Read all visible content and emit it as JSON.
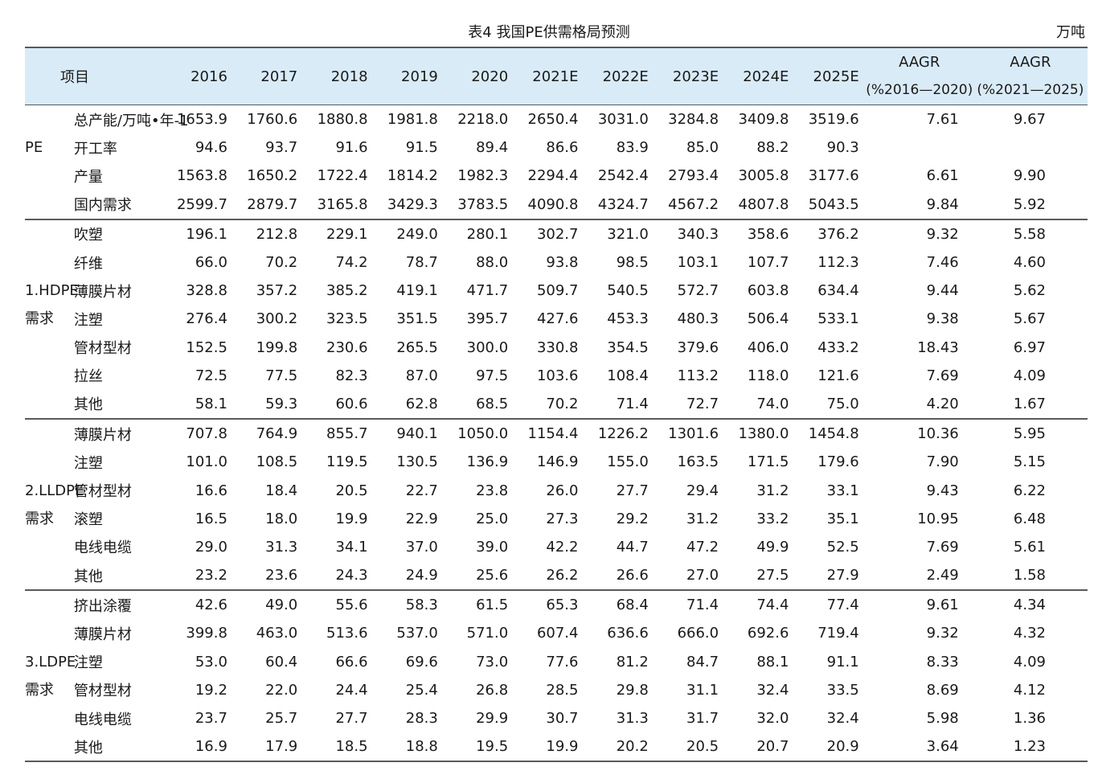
{
  "caption": "表4  我国PE供需格局预测",
  "unit": "万吨",
  "header": {
    "item": "项目",
    "years": [
      "2016",
      "2017",
      "2018",
      "2019",
      "2020",
      "2021E",
      "2022E",
      "2023E",
      "2024E",
      "2025E"
    ],
    "aagr1": {
      "title": "AAGR",
      "sub": "(%2016—2020)"
    },
    "aagr2": {
      "title": "AAGR",
      "sub": "(%2021—2025)"
    }
  },
  "sections": [
    {
      "group_lines": [
        "PE"
      ],
      "rows": [
        {
          "item": "总产能/万吨•年-1",
          "values": [
            "1653.9",
            "1760.6",
            "1880.8",
            "1981.8",
            "2218.0",
            "2650.4",
            "3031.0",
            "3284.8",
            "3409.8",
            "3519.6"
          ],
          "aagr1": "7.61",
          "aagr2": "9.67"
        },
        {
          "item": "开工率",
          "values": [
            "94.6",
            "93.7",
            "91.6",
            "91.5",
            "89.4",
            "86.6",
            "83.9",
            "85.0",
            "88.2",
            "90.3"
          ],
          "aagr1": "",
          "aagr2": ""
        },
        {
          "item": "产量",
          "values": [
            "1563.8",
            "1650.2",
            "1722.4",
            "1814.2",
            "1982.3",
            "2294.4",
            "2542.4",
            "2793.4",
            "3005.8",
            "3177.6"
          ],
          "aagr1": "6.61",
          "aagr2": "9.90"
        },
        {
          "item": "国内需求",
          "values": [
            "2599.7",
            "2879.7",
            "3165.8",
            "3429.3",
            "3783.5",
            "4090.8",
            "4324.7",
            "4567.2",
            "4807.8",
            "5043.5"
          ],
          "aagr1": "9.84",
          "aagr2": "5.92"
        }
      ]
    },
    {
      "group_lines": [
        "1.HDPE",
        "需求"
      ],
      "rows": [
        {
          "item": "吹塑",
          "values": [
            "196.1",
            "212.8",
            "229.1",
            "249.0",
            "280.1",
            "302.7",
            "321.0",
            "340.3",
            "358.6",
            "376.2"
          ],
          "aagr1": "9.32",
          "aagr2": "5.58"
        },
        {
          "item": "纤维",
          "values": [
            "66.0",
            "70.2",
            "74.2",
            "78.7",
            "88.0",
            "93.8",
            "98.5",
            "103.1",
            "107.7",
            "112.3"
          ],
          "aagr1": "7.46",
          "aagr2": "4.60"
        },
        {
          "item": "薄膜片材",
          "values": [
            "328.8",
            "357.2",
            "385.2",
            "419.1",
            "471.7",
            "509.7",
            "540.5",
            "572.7",
            "603.8",
            "634.4"
          ],
          "aagr1": "9.44",
          "aagr2": "5.62"
        },
        {
          "item": "注塑",
          "values": [
            "276.4",
            "300.2",
            "323.5",
            "351.5",
            "395.7",
            "427.6",
            "453.3",
            "480.3",
            "506.4",
            "533.1"
          ],
          "aagr1": "9.38",
          "aagr2": "5.67"
        },
        {
          "item": "管材型材",
          "values": [
            "152.5",
            "199.8",
            "230.6",
            "265.5",
            "300.0",
            "330.8",
            "354.5",
            "379.6",
            "406.0",
            "433.2"
          ],
          "aagr1": "18.43",
          "aagr2": "6.97"
        },
        {
          "item": "拉丝",
          "values": [
            "72.5",
            "77.5",
            "82.3",
            "87.0",
            "97.5",
            "103.6",
            "108.4",
            "113.2",
            "118.0",
            "121.6"
          ],
          "aagr1": "7.69",
          "aagr2": "4.09"
        },
        {
          "item": "其他",
          "values": [
            "58.1",
            "59.3",
            "60.6",
            "62.8",
            "68.5",
            "70.2",
            "71.4",
            "72.7",
            "74.0",
            "75.0"
          ],
          "aagr1": "4.20",
          "aagr2": "1.67"
        }
      ]
    },
    {
      "group_lines": [
        "2.LLDPE",
        "需求"
      ],
      "rows": [
        {
          "item": "薄膜片材",
          "values": [
            "707.8",
            "764.9",
            "855.7",
            "940.1",
            "1050.0",
            "1154.4",
            "1226.2",
            "1301.6",
            "1380.0",
            "1454.8"
          ],
          "aagr1": "10.36",
          "aagr2": "5.95"
        },
        {
          "item": "注塑",
          "values": [
            "101.0",
            "108.5",
            "119.5",
            "130.5",
            "136.9",
            "146.9",
            "155.0",
            "163.5",
            "171.5",
            "179.6"
          ],
          "aagr1": "7.90",
          "aagr2": "5.15"
        },
        {
          "item": "管材型材",
          "values": [
            "16.6",
            "18.4",
            "20.5",
            "22.7",
            "23.8",
            "26.0",
            "27.7",
            "29.4",
            "31.2",
            "33.1"
          ],
          "aagr1": "9.43",
          "aagr2": "6.22"
        },
        {
          "item": "滚塑",
          "values": [
            "16.5",
            "18.0",
            "19.9",
            "22.9",
            "25.0",
            "27.3",
            "29.2",
            "31.2",
            "33.2",
            "35.1"
          ],
          "aagr1": "10.95",
          "aagr2": "6.48"
        },
        {
          "item": "电线电缆",
          "values": [
            "29.0",
            "31.3",
            "34.1",
            "37.0",
            "39.0",
            "42.2",
            "44.7",
            "47.2",
            "49.9",
            "52.5"
          ],
          "aagr1": "7.69",
          "aagr2": "5.61"
        },
        {
          "item": "其他",
          "values": [
            "23.2",
            "23.6",
            "24.3",
            "24.9",
            "25.6",
            "26.2",
            "26.6",
            "27.0",
            "27.5",
            "27.9"
          ],
          "aagr1": "2.49",
          "aagr2": "1.58"
        }
      ]
    },
    {
      "group_lines": [
        "3.LDPE",
        "需求"
      ],
      "rows": [
        {
          "item": "挤出涂覆",
          "values": [
            "42.6",
            "49.0",
            "55.6",
            "58.3",
            "61.5",
            "65.3",
            "68.4",
            "71.4",
            "74.4",
            "77.4"
          ],
          "aagr1": "9.61",
          "aagr2": "4.34"
        },
        {
          "item": "薄膜片材",
          "values": [
            "399.8",
            "463.0",
            "513.6",
            "537.0",
            "571.0",
            "607.4",
            "636.6",
            "666.0",
            "692.6",
            "719.4"
          ],
          "aagr1": "9.32",
          "aagr2": "4.32"
        },
        {
          "item": "注塑",
          "values": [
            "53.0",
            "60.4",
            "66.6",
            "69.6",
            "73.0",
            "77.6",
            "81.2",
            "84.7",
            "88.1",
            "91.1"
          ],
          "aagr1": "8.33",
          "aagr2": "4.09"
        },
        {
          "item": "管材型材",
          "values": [
            "19.2",
            "22.0",
            "24.4",
            "25.4",
            "26.8",
            "28.5",
            "29.8",
            "31.1",
            "32.4",
            "33.5"
          ],
          "aagr1": "8.69",
          "aagr2": "4.12"
        },
        {
          "item": "电线电缆",
          "values": [
            "23.7",
            "25.7",
            "27.7",
            "28.3",
            "29.9",
            "30.7",
            "31.3",
            "31.7",
            "32.0",
            "32.4"
          ],
          "aagr1": "5.98",
          "aagr2": "1.36"
        },
        {
          "item": "其他",
          "values": [
            "16.9",
            "17.9",
            "18.5",
            "18.8",
            "19.5",
            "19.9",
            "20.2",
            "20.5",
            "20.7",
            "20.9"
          ],
          "aagr1": "3.64",
          "aagr2": "1.23"
        }
      ]
    }
  ]
}
